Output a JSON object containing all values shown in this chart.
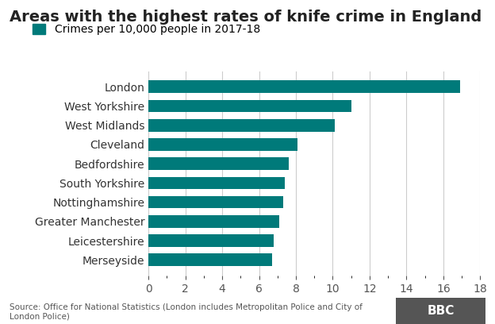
{
  "title": "Areas with the highest rates of knife crime in England",
  "legend_label": "Crimes per 10,000 people in 2017-18",
  "categories": [
    "Merseyside",
    "Leicestershire",
    "Greater Manchester",
    "Nottinghamshire",
    "South Yorkshire",
    "Bedfordshire",
    "Cleveland",
    "West Midlands",
    "West Yorkshire",
    "London"
  ],
  "values": [
    6.7,
    6.8,
    7.1,
    7.3,
    7.4,
    7.6,
    8.1,
    10.1,
    11.0,
    16.9
  ],
  "bar_color": "#008080",
  "background_color": "#ffffff",
  "xlim": [
    0,
    18
  ],
  "xticks": [
    0,
    2,
    4,
    6,
    8,
    10,
    12,
    14,
    16,
    18
  ],
  "source_text": "Source: Office for National Statistics (London includes Metropolitan Police and City of\nLondon Police)",
  "bbc_logo_text": "BBC",
  "title_fontsize": 14,
  "legend_fontsize": 10,
  "tick_fontsize": 10,
  "bar_color_hex": "#007070"
}
